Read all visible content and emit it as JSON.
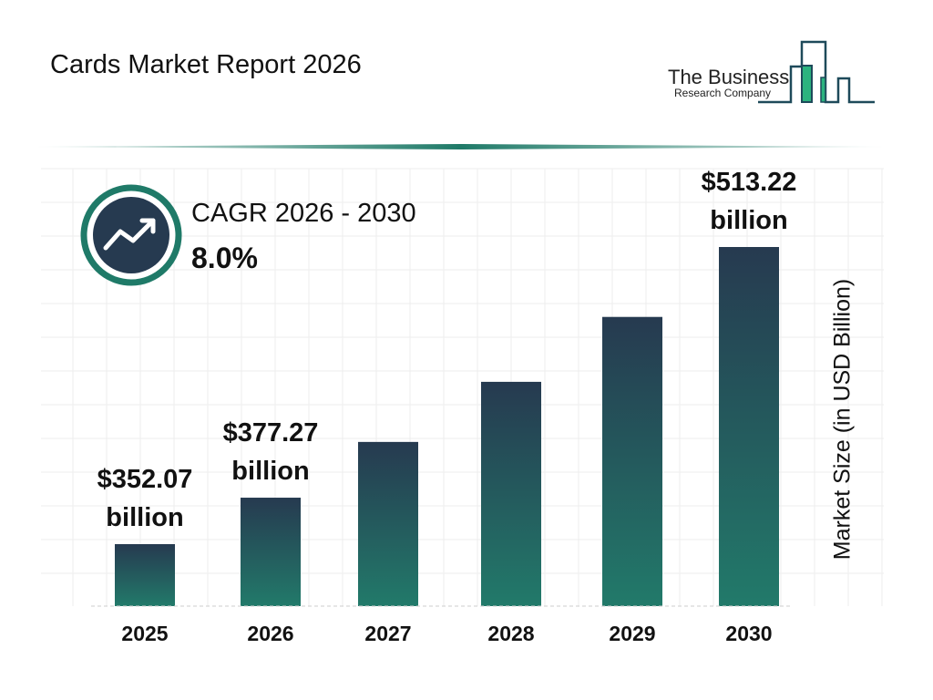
{
  "title": "Cards Market Report 2026",
  "logo": {
    "line1": "The Business",
    "line2": "Research Company"
  },
  "cagr": {
    "label": "CAGR 2026 - 2030",
    "value": "8.0%",
    "icon": "trend-up-arrow-icon"
  },
  "colors": {
    "bar_top": "#263a50",
    "bar_bottom": "#227a6a",
    "accent": "#1f7a68",
    "logo_green": "#2bb37f"
  },
  "chart_data": {
    "type": "bar",
    "categories": [
      "2025",
      "2026",
      "2027",
      "2028",
      "2029",
      "2030"
    ],
    "values": [
      352.07,
      377.27,
      407.5,
      440.1,
      475.3,
      513.22
    ],
    "data_labels": [
      {
        "index": 0,
        "amount": "$352.07",
        "unit": "billion"
      },
      {
        "index": 1,
        "amount": "$377.27",
        "unit": "billion"
      },
      {
        "index": 5,
        "amount": "$513.22",
        "unit": "billion"
      }
    ],
    "ylabel": "Market Size (in USD Billion)",
    "xlabel": "",
    "grid": true
  }
}
